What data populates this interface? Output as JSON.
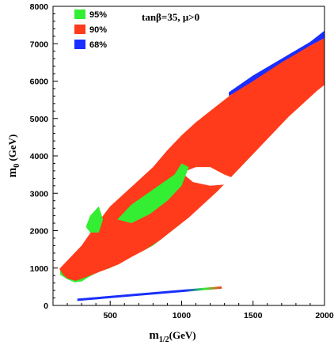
{
  "chart_data": {
    "type": "area",
    "title": "",
    "annotation": "tanβ=35, μ>0",
    "xlabel": {
      "main": "m",
      "sub": "1/2",
      "unit": "(GeV)"
    },
    "ylabel": {
      "main": "m",
      "sub": "0",
      "unit": " (GeV)"
    },
    "xlim": [
      100,
      2000
    ],
    "ylim": [
      0,
      8000
    ],
    "xticks": [
      500,
      1000,
      1500,
      2000
    ],
    "yticks": [
      0,
      1000,
      2000,
      3000,
      4000,
      5000,
      6000,
      7000,
      8000
    ],
    "grid": false,
    "legend_position": "top-left",
    "series": [
      {
        "name": "95%",
        "color": "#33ee33",
        "outer": [
          [
            150,
            820
          ],
          [
            200,
            700
          ],
          [
            250,
            620
          ],
          [
            300,
            640
          ],
          [
            350,
            760
          ],
          [
            420,
            900
          ],
          [
            500,
            1000
          ],
          [
            600,
            1200
          ],
          [
            700,
            1400
          ],
          [
            800,
            1600
          ],
          [
            900,
            1900
          ],
          [
            1000,
            2200
          ],
          [
            1100,
            2550
          ],
          [
            1200,
            2900
          ],
          [
            1300,
            3250
          ],
          [
            1400,
            3650
          ],
          [
            1500,
            4050
          ],
          [
            1600,
            4500
          ],
          [
            1700,
            4950
          ],
          [
            1800,
            5400
          ],
          [
            1900,
            5850
          ],
          [
            2000,
            6250
          ],
          [
            2000,
            7050
          ],
          [
            1900,
            6850
          ],
          [
            1800,
            6650
          ],
          [
            1700,
            6450
          ],
          [
            1600,
            6200
          ],
          [
            1500,
            5950
          ],
          [
            1400,
            5700
          ],
          [
            1300,
            5450
          ],
          [
            1200,
            5150
          ],
          [
            1100,
            4850
          ],
          [
            1000,
            4450
          ],
          [
            900,
            4050
          ],
          [
            800,
            3650
          ],
          [
            700,
            3250
          ],
          [
            600,
            2950
          ],
          [
            500,
            2550
          ],
          [
            400,
            2050
          ],
          [
            300,
            1550
          ],
          [
            200,
            1150
          ],
          [
            150,
            950
          ]
        ]
      },
      {
        "name": "90%",
        "color": "#ff3b1b",
        "outer": [
          [
            145,
            980
          ],
          [
            170,
            820
          ],
          [
            200,
            720
          ],
          [
            260,
            660
          ],
          [
            320,
            740
          ],
          [
            400,
            860
          ],
          [
            480,
            980
          ],
          [
            560,
            1100
          ],
          [
            650,
            1300
          ],
          [
            750,
            1500
          ],
          [
            850,
            1750
          ],
          [
            950,
            2050
          ],
          [
            1050,
            2350
          ],
          [
            1150,
            2700
          ],
          [
            1250,
            3050
          ],
          [
            1350,
            3450
          ],
          [
            1450,
            3850
          ],
          [
            1550,
            4250
          ],
          [
            1650,
            4650
          ],
          [
            1750,
            5050
          ],
          [
            1850,
            5400
          ],
          [
            1950,
            5750
          ],
          [
            2000,
            5900
          ],
          [
            2000,
            7150
          ],
          [
            1900,
            6950
          ],
          [
            1800,
            6750
          ],
          [
            1700,
            6550
          ],
          [
            1600,
            6300
          ],
          [
            1500,
            6050
          ],
          [
            1400,
            5800
          ],
          [
            1300,
            5500
          ],
          [
            1200,
            5200
          ],
          [
            1100,
            4900
          ],
          [
            1000,
            4550
          ],
          [
            900,
            4150
          ],
          [
            800,
            3700
          ],
          [
            700,
            3350
          ],
          [
            600,
            3000
          ],
          [
            500,
            2650
          ],
          [
            400,
            2150
          ],
          [
            300,
            1600
          ],
          [
            200,
            1200
          ],
          [
            150,
            1000
          ]
        ]
      },
      {
        "name": "68%",
        "color": "#1a2eff",
        "outer": [
          [
            1330,
            5600
          ],
          [
            1500,
            6000
          ],
          [
            1700,
            6500
          ],
          [
            1900,
            6950
          ],
          [
            2000,
            7150
          ],
          [
            2000,
            7350
          ],
          [
            1900,
            7050
          ],
          [
            1700,
            6600
          ],
          [
            1500,
            6150
          ],
          [
            1330,
            5700
          ]
        ]
      }
    ],
    "band": {
      "x": [
        270,
        1280
      ],
      "y": [
        150,
        480
      ],
      "colors": [
        "#1a2eff",
        "#33ee33",
        "#ff3b1b"
      ]
    }
  }
}
